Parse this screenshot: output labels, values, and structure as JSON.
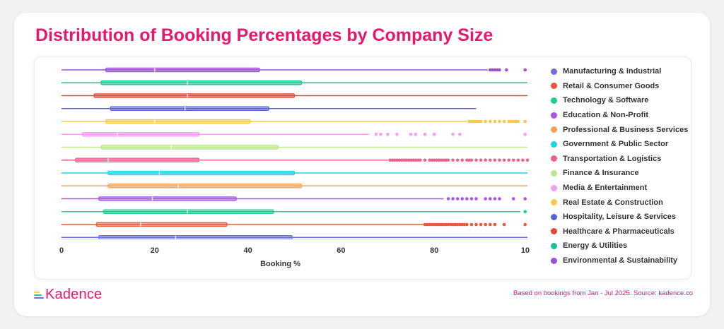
{
  "page": {
    "title": "Distribution of Booking Percentages by Company Size"
  },
  "brand": {
    "name": "Kadence",
    "color": "#e6186d"
  },
  "footer": {
    "note": "Based on bookings from Jan - Jul 2025. Source: kadence.co"
  },
  "chart_data": {
    "type": "box",
    "orientation": "horizontal",
    "xlabel": "Booking %",
    "xlim": [
      0,
      100
    ],
    "xticks": [
      0,
      20,
      40,
      60,
      80,
      100
    ],
    "grid": false,
    "legend_position": "right",
    "series": [
      {
        "name": "Manufacturing & Industrial",
        "color": "#6b6fe0",
        "whisker_low": 0,
        "q1": 8,
        "median": 24.5,
        "q3": 49.5,
        "whisker_high": 100,
        "outliers": []
      },
      {
        "name": "Retail & Consumer Goods",
        "color": "#e8593a",
        "whisker_low": 0,
        "q1": 7.5,
        "median": 17,
        "q3": 35.5,
        "whisker_high": 78,
        "outliers": [
          78,
          78.5,
          79,
          79.5,
          80,
          80.5,
          81,
          81.5,
          82,
          82.5,
          83,
          83.5,
          84,
          84.5,
          85,
          85.5,
          86,
          86.5,
          87,
          88,
          89,
          90,
          91,
          92,
          93,
          95,
          99.5
        ]
      },
      {
        "name": "Technology & Software",
        "color": "#1ccf8f",
        "whisker_low": 0,
        "q1": 9,
        "median": 27,
        "q3": 45.5,
        "whisker_high": 98.5,
        "outliers": [
          99.5
        ]
      },
      {
        "name": "Education & Non-Profit",
        "color": "#a855e8",
        "whisker_low": 0,
        "q1": 8,
        "median": 19.5,
        "q3": 37.5,
        "whisker_high": 82,
        "outliers": [
          83,
          84,
          85,
          86,
          87,
          88,
          89,
          91,
          92,
          93,
          94,
          97,
          99.5
        ]
      },
      {
        "name": "Professional & Business Services",
        "color": "#f5a05a",
        "whisker_low": 0,
        "q1": 10,
        "median": 25,
        "q3": 51.5,
        "whisker_high": 100,
        "outliers": []
      },
      {
        "name": "Government & Public Sector",
        "color": "#1cd3ee",
        "whisker_low": 0,
        "q1": 10,
        "median": 21,
        "q3": 50,
        "whisker_high": 100,
        "outliers": []
      },
      {
        "name": "Transportation & Logistics",
        "color": "#f0618e",
        "whisker_low": 0,
        "q1": 3,
        "median": 10,
        "q3": 29.5,
        "whisker_high": 70,
        "outliers": [
          70.5,
          71,
          71.5,
          72,
          72.5,
          73,
          73.5,
          74,
          74.5,
          75,
          75.5,
          76,
          76.5,
          77,
          78,
          79,
          79.5,
          80,
          80.5,
          81,
          81.5,
          82,
          82.5,
          83,
          84,
          85,
          86,
          87,
          87.5,
          88,
          89,
          90,
          91,
          92,
          93,
          94,
          95,
          96,
          97,
          98,
          99,
          100
        ]
      },
      {
        "name": "Finance & Insurance",
        "color": "#b9e98a",
        "whisker_low": 0,
        "q1": 8.5,
        "median": 23.5,
        "q3": 46.5,
        "whisker_high": 100,
        "outliers": []
      },
      {
        "name": "Media & Entertainment",
        "color": "#f49ef0",
        "whisker_low": 0,
        "q1": 4.5,
        "median": 12,
        "q3": 29.5,
        "whisker_high": 66,
        "outliers": [
          67.5,
          68.5,
          70,
          72,
          75,
          76,
          78,
          80,
          84,
          85.5,
          99.5
        ]
      },
      {
        "name": "Real Estate & Construction",
        "color": "#f7c948",
        "whisker_low": 0,
        "q1": 9.5,
        "median": 20,
        "q3": 40.5,
        "whisker_high": 87,
        "outliers": [
          87.5,
          88,
          88.5,
          89,
          89.5,
          90,
          91,
          92,
          93,
          94,
          95,
          96,
          96.5,
          97,
          97.5,
          98,
          99.5
        ]
      },
      {
        "name": "Hospitality, Leisure & Services",
        "color": "#5a62d9",
        "whisker_low": 0,
        "q1": 10.5,
        "median": 26.5,
        "q3": 44.5,
        "whisker_high": 89,
        "outliers": []
      },
      {
        "name": "Healthcare & Pharmaceuticals",
        "color": "#e04b35",
        "whisker_low": 0,
        "q1": 7,
        "median": 27,
        "q3": 50,
        "whisker_high": 100,
        "outliers": []
      },
      {
        "name": "Energy & Utilities",
        "color": "#14c490",
        "whisker_low": 0,
        "q1": 8.5,
        "median": 27,
        "q3": 51.5,
        "whisker_high": 100,
        "outliers": []
      },
      {
        "name": "Environmental & Sustainability",
        "color": "#9a4fd6",
        "whisker_low": 0,
        "q1": 9.5,
        "median": 20,
        "q3": 42.5,
        "whisker_high": 91.5,
        "outliers": [
          92,
          92.5,
          93,
          93.5,
          94,
          95.5,
          99.5
        ]
      }
    ]
  }
}
